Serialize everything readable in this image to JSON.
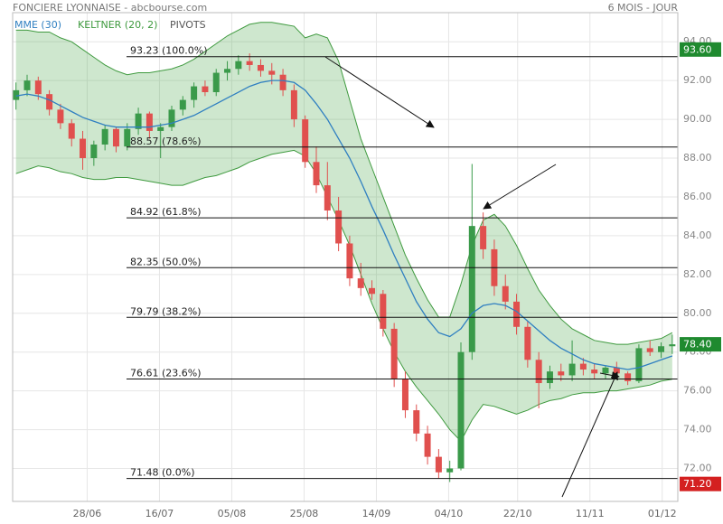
{
  "chart_data": {
    "type": "candlestick",
    "title": "FONCIERE LYONNAISE - abcbourse.com",
    "period": "6 MOIS - JOUR",
    "up_color": "#3a9a4a",
    "down_color": "#e0504e",
    "grid": true,
    "xlim": [
      -0.3,
      59.5
    ],
    "ylim": [
      70.3,
      95.5
    ],
    "yticks": [
      {
        "value": 72,
        "label": "72.00"
      },
      {
        "value": 74,
        "label": "74.00"
      },
      {
        "value": 76,
        "label": "76.00"
      },
      {
        "value": 78,
        "label": "78.00"
      },
      {
        "value": 80,
        "label": "80.00"
      },
      {
        "value": 82,
        "label": "82.00"
      },
      {
        "value": 84,
        "label": "84.00"
      },
      {
        "value": 86,
        "label": "86.00"
      },
      {
        "value": 88,
        "label": "88.00"
      },
      {
        "value": 90,
        "label": "90.00"
      },
      {
        "value": 92,
        "label": "92.00"
      },
      {
        "value": 94,
        "label": "94.00"
      }
    ],
    "xticks": [
      {
        "value": 6.4,
        "label": "28/06"
      },
      {
        "value": 12.9,
        "label": "16/07"
      },
      {
        "value": 19.4,
        "label": "05/08"
      },
      {
        "value": 25.9,
        "label": "25/08"
      },
      {
        "value": 32.4,
        "label": "14/09"
      },
      {
        "value": 38.9,
        "label": "04/10"
      },
      {
        "value": 45.1,
        "label": "22/10"
      },
      {
        "value": 51.6,
        "label": "11/11"
      },
      {
        "value": 58.1,
        "label": "01/12"
      }
    ],
    "candles": [
      [
        91.0,
        91.9,
        90.5,
        91.5
      ],
      [
        91.5,
        92.3,
        91.2,
        92.0
      ],
      [
        92.0,
        92.2,
        91.0,
        91.3
      ],
      [
        91.3,
        91.5,
        90.2,
        90.5
      ],
      [
        90.5,
        90.8,
        89.5,
        89.8
      ],
      [
        89.8,
        90.0,
        88.6,
        89.0
      ],
      [
        89.0,
        89.4,
        87.4,
        88.0
      ],
      [
        88.0,
        88.9,
        87.6,
        88.7
      ],
      [
        88.7,
        89.7,
        88.4,
        89.5
      ],
      [
        89.5,
        89.6,
        88.3,
        88.6
      ],
      [
        88.6,
        89.8,
        88.4,
        89.5
      ],
      [
        89.5,
        90.6,
        89.2,
        90.3
      ],
      [
        90.3,
        90.4,
        89.0,
        89.4
      ],
      [
        89.4,
        89.8,
        88.0,
        89.6
      ],
      [
        89.6,
        90.7,
        89.4,
        90.5
      ],
      [
        90.5,
        91.2,
        90.2,
        91.0
      ],
      [
        91.0,
        91.9,
        90.6,
        91.7
      ],
      [
        91.7,
        92.0,
        91.2,
        91.4
      ],
      [
        91.4,
        92.6,
        91.2,
        92.4
      ],
      [
        92.4,
        93.0,
        92.0,
        92.6
      ],
      [
        92.6,
        93.3,
        92.3,
        93.0
      ],
      [
        93.0,
        93.4,
        92.5,
        92.8
      ],
      [
        92.8,
        93.1,
        92.2,
        92.5
      ],
      [
        92.5,
        92.9,
        91.8,
        92.3
      ],
      [
        92.3,
        92.6,
        91.2,
        91.5
      ],
      [
        91.5,
        91.8,
        89.6,
        90.0
      ],
      [
        90.0,
        90.2,
        87.5,
        87.8
      ],
      [
        87.8,
        88.6,
        86.2,
        86.6
      ],
      [
        86.6,
        87.8,
        84.8,
        85.3
      ],
      [
        85.3,
        86.0,
        83.2,
        83.6
      ],
      [
        83.6,
        84.0,
        81.4,
        81.8
      ],
      [
        81.8,
        82.6,
        80.9,
        81.3
      ],
      [
        81.3,
        81.7,
        80.7,
        81.0
      ],
      [
        81.0,
        81.2,
        78.8,
        79.2
      ],
      [
        79.2,
        79.5,
        76.2,
        76.6
      ],
      [
        76.6,
        77.0,
        74.6,
        75.0
      ],
      [
        75.0,
        75.3,
        73.4,
        73.8
      ],
      [
        73.8,
        74.2,
        72.2,
        72.6
      ],
      [
        72.6,
        73.0,
        71.5,
        71.8
      ],
      [
        71.8,
        72.4,
        71.3,
        72.0
      ],
      [
        72.0,
        78.5,
        71.9,
        78.0
      ],
      [
        78.0,
        87.7,
        77.6,
        84.5
      ],
      [
        84.5,
        85.2,
        82.8,
        83.3
      ],
      [
        83.3,
        83.8,
        80.9,
        81.4
      ],
      [
        81.4,
        82.0,
        80.2,
        80.6
      ],
      [
        80.6,
        81.0,
        78.9,
        79.3
      ],
      [
        79.3,
        79.6,
        77.2,
        77.6
      ],
      [
        77.6,
        78.0,
        75.1,
        76.4
      ],
      [
        76.4,
        77.3,
        76.1,
        77.0
      ],
      [
        77.0,
        77.4,
        76.5,
        76.8
      ],
      [
        76.8,
        78.6,
        76.5,
        77.4
      ],
      [
        77.4,
        77.7,
        76.8,
        77.1
      ],
      [
        77.1,
        77.4,
        76.6,
        76.9
      ],
      [
        76.9,
        77.3,
        76.6,
        77.2
      ],
      [
        77.2,
        77.5,
        76.7,
        76.9
      ],
      [
        76.9,
        77.0,
        76.3,
        76.5
      ],
      [
        76.5,
        78.4,
        76.4,
        78.2
      ],
      [
        78.2,
        78.6,
        77.8,
        78.0
      ],
      [
        78.0,
        78.5,
        77.7,
        78.3
      ],
      [
        78.3,
        78.9,
        77.9,
        78.4
      ]
    ],
    "series": [
      {
        "name": "MME (30)",
        "color": "#2f7fc1",
        "values": [
          91.2,
          91.3,
          91.2,
          91.0,
          90.7,
          90.4,
          90.1,
          89.9,
          89.7,
          89.6,
          89.6,
          89.6,
          89.6,
          89.7,
          89.8,
          90.0,
          90.2,
          90.5,
          90.8,
          91.1,
          91.4,
          91.7,
          91.9,
          92.0,
          92.0,
          91.9,
          91.5,
          90.8,
          90.0,
          89.0,
          88.0,
          86.8,
          85.5,
          84.3,
          83.0,
          81.8,
          80.6,
          79.7,
          79.0,
          78.8,
          79.2,
          80.0,
          80.4,
          80.5,
          80.4,
          80.1,
          79.6,
          79.1,
          78.6,
          78.2,
          77.9,
          77.6,
          77.4,
          77.3,
          77.2,
          77.1,
          77.2,
          77.4,
          77.6,
          77.8
        ]
      },
      {
        "name": "KELTNER (20, 2)",
        "color": "#3f9a3f",
        "fill": "rgba(80,170,80,0.28)",
        "upper": [
          94.6,
          94.6,
          94.5,
          94.5,
          94.2,
          94.0,
          93.6,
          93.2,
          92.8,
          92.5,
          92.3,
          92.4,
          92.4,
          92.5,
          92.6,
          92.8,
          93.1,
          93.5,
          93.9,
          94.3,
          94.6,
          94.9,
          95.0,
          95.0,
          94.9,
          94.8,
          94.2,
          94.4,
          94.2,
          93.0,
          91.0,
          89.0,
          87.5,
          86.0,
          84.5,
          83.0,
          81.8,
          80.7,
          79.8,
          79.8,
          81.5,
          83.5,
          84.8,
          85.1,
          84.5,
          83.5,
          82.3,
          81.2,
          80.4,
          79.7,
          79.2,
          78.9,
          78.6,
          78.5,
          78.4,
          78.4,
          78.5,
          78.6,
          78.7,
          79.0
        ],
        "lower": [
          87.2,
          87.4,
          87.6,
          87.5,
          87.3,
          87.2,
          87.0,
          86.9,
          86.9,
          87.0,
          87.0,
          86.9,
          86.8,
          86.7,
          86.6,
          86.6,
          86.8,
          87.0,
          87.1,
          87.3,
          87.5,
          87.8,
          88.0,
          88.2,
          88.3,
          88.4,
          88.1,
          87.2,
          86.0,
          84.8,
          83.5,
          82.0,
          80.5,
          79.2,
          78.0,
          77.0,
          76.2,
          75.5,
          74.8,
          74.0,
          73.4,
          74.5,
          75.3,
          75.2,
          75.0,
          74.8,
          75.0,
          75.3,
          75.5,
          75.6,
          75.8,
          75.9,
          75.9,
          76.0,
          76.0,
          76.1,
          76.2,
          76.3,
          76.5,
          76.6
        ]
      }
    ],
    "pivots": {
      "name": "PIVOTS",
      "color": "#555555",
      "levels": [
        {
          "value": 93.23,
          "label": "93.23 (100.0%)"
        },
        {
          "value": 88.57,
          "label": "88.57 (78.6%)"
        },
        {
          "value": 84.92,
          "label": "84.92 (61.8%)"
        },
        {
          "value": 82.35,
          "label": "82.35 (50.0%)"
        },
        {
          "value": 79.79,
          "label": "79.79 (38.2%)"
        },
        {
          "value": 76.61,
          "label": "76.61 (23.6%)"
        },
        {
          "value": 71.48,
          "label": "71.48 (0.0%)"
        }
      ]
    },
    "price_tags": [
      {
        "value": 93.6,
        "label": "93.60",
        "color": "#1f8a2f"
      },
      {
        "value": 78.4,
        "label": "78.40",
        "color": "#1f8a2f"
      },
      {
        "value": 71.2,
        "label": "71.20",
        "color": "#d42020"
      }
    ]
  }
}
